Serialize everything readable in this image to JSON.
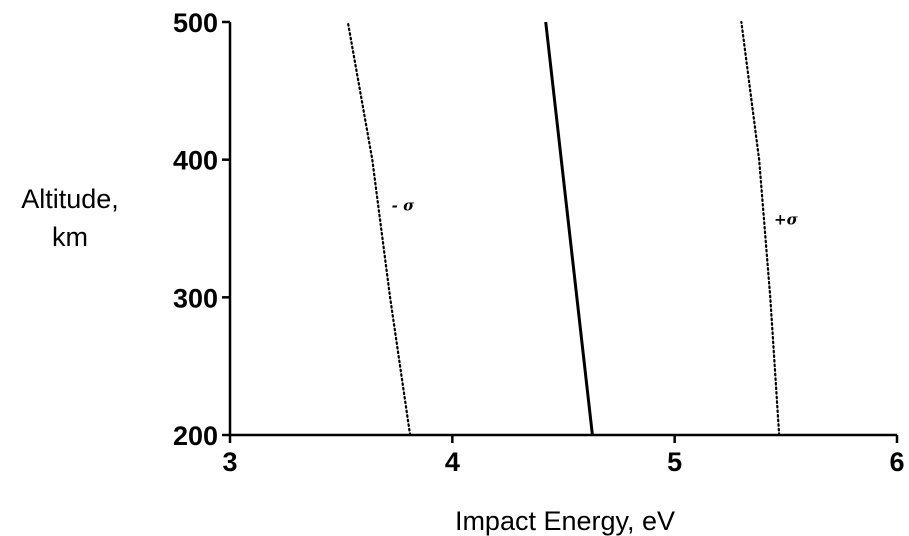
{
  "chart_data": {
    "type": "line",
    "title": "",
    "xlabel": "Impact Energy, eV",
    "ylabel_lines": [
      "Altitude,",
      "km"
    ],
    "xlim": [
      3,
      6
    ],
    "ylim": [
      200,
      500
    ],
    "x_ticks": [
      3,
      4,
      5,
      6
    ],
    "y_ticks": [
      200,
      300,
      400,
      500
    ],
    "grid": false,
    "series": [
      {
        "name": "",
        "style": "solid",
        "color": "#000000",
        "points": [
          [
            4.63,
            200
          ],
          [
            4.42,
            500
          ]
        ]
      },
      {
        "name": "",
        "style": "dotted",
        "color": "#000000",
        "points": [
          [
            3.81,
            200
          ],
          [
            3.72,
            300
          ],
          [
            3.64,
            400
          ],
          [
            3.53,
            500
          ]
        ]
      },
      {
        "name": "",
        "style": "dotted",
        "color": "#000000",
        "points": [
          [
            5.47,
            200
          ],
          [
            5.43,
            300
          ],
          [
            5.38,
            400
          ],
          [
            5.3,
            500
          ]
        ]
      }
    ],
    "annotations": [
      {
        "text": "- σ",
        "x": 3.7,
        "y": 360
      },
      {
        "text": "+σ",
        "x": 5.42,
        "y": 350
      }
    ]
  }
}
